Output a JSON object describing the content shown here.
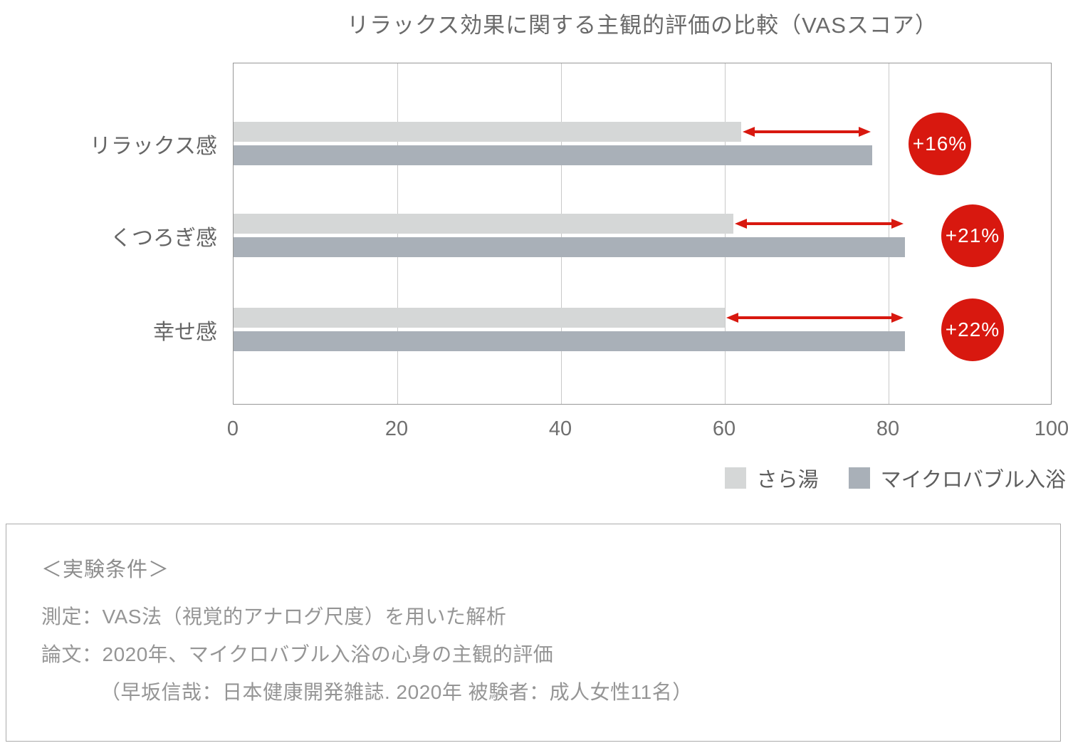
{
  "chart": {
    "title": "リラックス効果に関する主観的評価の比較（VASスコア）"
  },
  "chart_data": {
    "type": "bar",
    "orientation": "horizontal",
    "title": "リラックス効果に関する主観的評価の比較（VASスコア）",
    "categories": [
      "リラックス感",
      "くつろぎ感",
      "幸せ感"
    ],
    "series": [
      {
        "name": "さら湯",
        "color": "#d5d7d7",
        "values": [
          62,
          61,
          60
        ]
      },
      {
        "name": "マイクロバブル入浴",
        "color": "#a9b0b8",
        "values": [
          78,
          82,
          82
        ]
      }
    ],
    "diff_labels": [
      "+16%",
      "+21%",
      "+22%"
    ],
    "diff_color": "#d8180f",
    "xlim": [
      0,
      100
    ],
    "x_ticks": [
      0,
      20,
      40,
      60,
      80,
      100
    ],
    "grid": "vertical",
    "legend_position": "bottom-right"
  },
  "info_box": {
    "heading": "＜実験条件＞",
    "lines": [
      "測定：VAS法（視覚的アナログ尺度）を用いた解析",
      "論文：2020年、マイクロバブル入浴の心身の主観的評価",
      "（早坂信哉：日本健康開発雑誌. 2020年  被験者：成人女性11名）"
    ]
  }
}
